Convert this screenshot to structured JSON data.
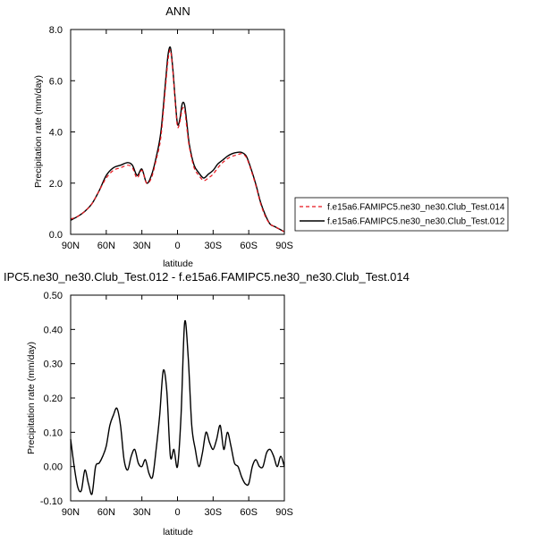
{
  "chart_data": [
    {
      "type": "line",
      "title": "ANN",
      "xlabel": "latitude",
      "ylabel": "Precipitation rate (mm/day)",
      "x_ticks": [
        "90N",
        "60N",
        "30N",
        "0",
        "30S",
        "60S",
        "90S"
      ],
      "y_ticks": [
        "0.0",
        "2.0",
        "4.0",
        "6.0",
        "8.0"
      ],
      "xlim": [
        90,
        -90
      ],
      "ylim": [
        0,
        8
      ],
      "legend_position": "right",
      "series": [
        {
          "name": "f.e15a6.FAMIPC5.ne30_ne30.Club_Test.014",
          "color": "#e8141c",
          "dash": "dashed",
          "x": [
            90,
            84,
            78,
            72,
            66,
            60,
            54,
            48,
            42,
            38,
            34,
            30,
            26,
            22,
            18,
            14,
            10,
            8,
            6,
            4,
            2,
            0,
            -2,
            -4,
            -6,
            -8,
            -10,
            -14,
            -18,
            -22,
            -26,
            -30,
            -34,
            -38,
            -42,
            -46,
            -50,
            -54,
            -58,
            -62,
            -66,
            -70,
            -74,
            -78,
            -82,
            -86,
            -90
          ],
          "y": [
            0.6,
            0.7,
            0.9,
            1.2,
            1.7,
            2.2,
            2.5,
            2.6,
            2.7,
            2.6,
            2.2,
            2.5,
            2.0,
            2.2,
            2.9,
            3.8,
            5.8,
            6.8,
            7.2,
            6.4,
            5.2,
            4.2,
            4.4,
            4.9,
            4.85,
            4.1,
            3.4,
            2.6,
            2.3,
            2.1,
            2.2,
            2.35,
            2.6,
            2.8,
            2.95,
            3.05,
            3.1,
            3.15,
            3.0,
            2.5,
            1.9,
            1.2,
            0.7,
            0.4,
            0.3,
            0.2,
            0.1
          ]
        },
        {
          "name": "f.e15a6.FAMIPC5.ne30_ne30.Club_Test.012",
          "color": "#000000",
          "dash": "solid",
          "x": [
            90,
            84,
            78,
            72,
            66,
            60,
            54,
            48,
            42,
            38,
            34,
            30,
            26,
            22,
            18,
            14,
            10,
            8,
            6,
            4,
            2,
            0,
            -2,
            -4,
            -6,
            -8,
            -10,
            -14,
            -18,
            -22,
            -26,
            -30,
            -34,
            -38,
            -42,
            -46,
            -50,
            -54,
            -58,
            -62,
            -66,
            -70,
            -74,
            -78,
            -82,
            -86,
            -90
          ],
          "y": [
            0.55,
            0.7,
            0.9,
            1.2,
            1.7,
            2.3,
            2.6,
            2.7,
            2.8,
            2.7,
            2.3,
            2.55,
            2.0,
            2.3,
            3.0,
            4.0,
            6.0,
            7.0,
            7.3,
            6.5,
            5.3,
            4.3,
            4.5,
            5.1,
            5.05,
            4.3,
            3.5,
            2.7,
            2.4,
            2.2,
            2.35,
            2.5,
            2.75,
            2.9,
            3.05,
            3.15,
            3.2,
            3.2,
            3.05,
            2.55,
            1.95,
            1.25,
            0.75,
            0.4,
            0.3,
            0.2,
            0.1
          ]
        }
      ]
    },
    {
      "type": "line",
      "title": "IPC5.ne30_ne30.Club_Test.012 - f.e15a6.FAMIPC5.ne30_ne30.Club_Test.014",
      "xlabel": "latitude",
      "ylabel": "Precipitation rate (mm/day)",
      "x_ticks": [
        "90N",
        "60N",
        "30N",
        "0",
        "30S",
        "60S",
        "90S"
      ],
      "y_ticks": [
        "-0.10",
        "0.00",
        "0.10",
        "0.20",
        "0.30",
        "0.40",
        "0.50"
      ],
      "xlim": [
        90,
        -90
      ],
      "ylim": [
        -0.1,
        0.5
      ],
      "series": [
        {
          "color": "#000000",
          "dash": "solid",
          "x": [
            90,
            87,
            84,
            81,
            78,
            75,
            72,
            69,
            66,
            63,
            60,
            57,
            54,
            51,
            48,
            45,
            42,
            39,
            36,
            33,
            30,
            27,
            24,
            21,
            18,
            15,
            12,
            9,
            6,
            3,
            0,
            -3,
            -6,
            -9,
            -12,
            -15,
            -18,
            -21,
            -24,
            -27,
            -30,
            -33,
            -36,
            -39,
            -42,
            -45,
            -48,
            -51,
            -54,
            -57,
            -60,
            -63,
            -66,
            -69,
            -72,
            -75,
            -78,
            -81,
            -84,
            -87,
            -90
          ],
          "y": [
            0.08,
            0.0,
            -0.06,
            -0.07,
            -0.01,
            -0.05,
            -0.08,
            0.0,
            0.01,
            0.03,
            0.06,
            0.12,
            0.15,
            0.17,
            0.12,
            0.02,
            -0.01,
            0.03,
            0.05,
            0.01,
            0.0,
            0.02,
            -0.02,
            -0.03,
            0.05,
            0.15,
            0.28,
            0.22,
            0.03,
            0.05,
            0.0,
            0.15,
            0.42,
            0.32,
            0.12,
            0.05,
            0.0,
            0.04,
            0.1,
            0.07,
            0.05,
            0.08,
            0.12,
            0.05,
            0.1,
            0.06,
            0.01,
            0.0,
            -0.03,
            -0.05,
            -0.05,
            0.0,
            0.02,
            0.0,
            0.0,
            0.04,
            0.05,
            0.03,
            0.0,
            0.03,
            0.0
          ]
        }
      ]
    }
  ]
}
